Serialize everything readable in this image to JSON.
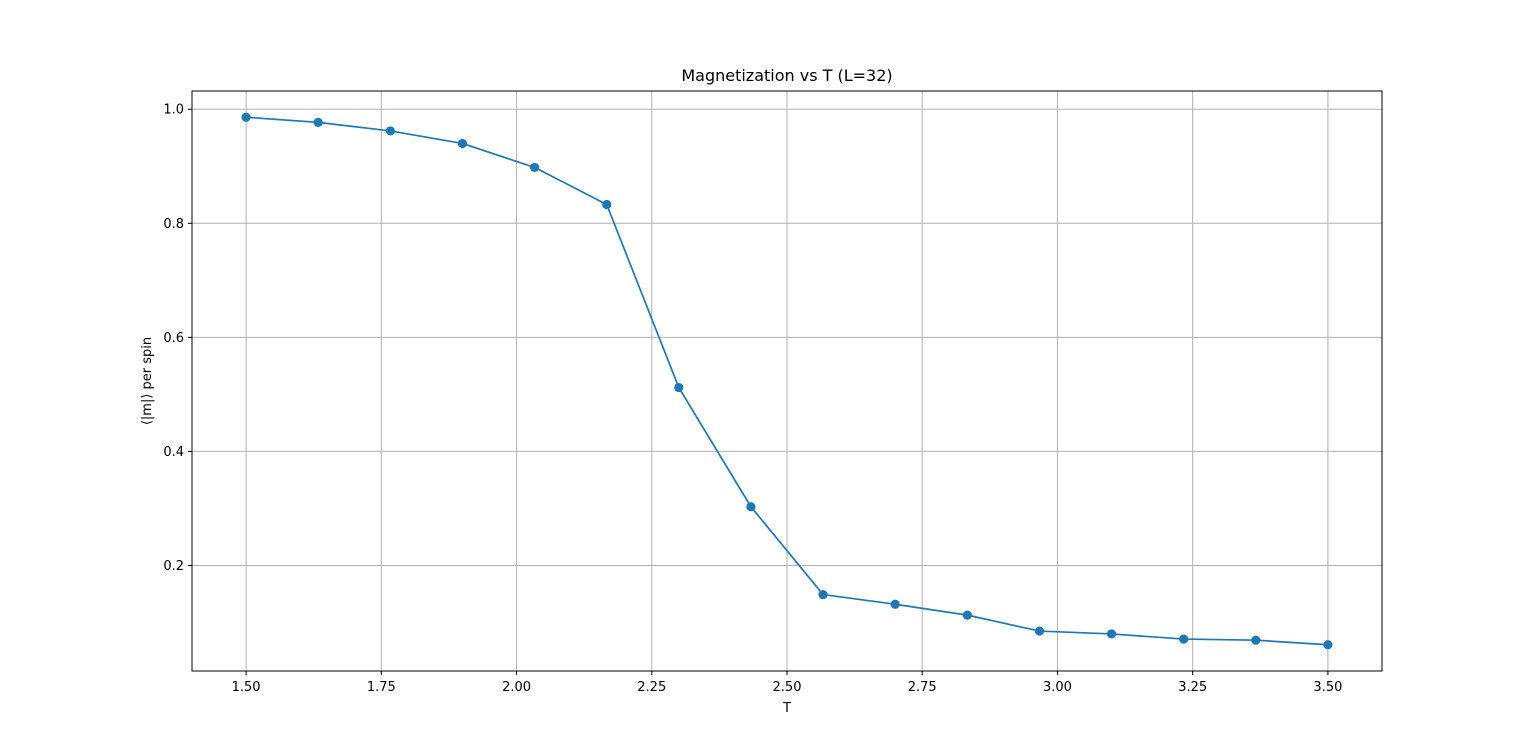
{
  "chart_data": {
    "type": "line",
    "title": "Magnetization vs T (L=32)",
    "xlabel": "T",
    "ylabel": "⟨|m|⟩ per spin",
    "x": [
      1.5,
      1.6333,
      1.7667,
      1.9,
      2.0333,
      2.1667,
      2.3,
      2.4333,
      2.5667,
      2.7,
      2.8333,
      2.9667,
      3.1,
      3.2333,
      3.3667,
      3.5
    ],
    "series": [
      {
        "values": [
          0.986,
          0.977,
          0.962,
          0.94,
          0.898,
          0.833,
          0.512,
          0.303,
          0.149,
          0.132,
          0.113,
          0.085,
          0.08,
          0.071,
          0.069,
          0.061
        ]
      }
    ],
    "xlim": [
      1.4,
      3.6
    ],
    "ylim": [
      0.015,
      1.032
    ],
    "xticks": [
      1.5,
      1.75,
      2.0,
      2.25,
      2.5,
      2.75,
      3.0,
      3.25,
      3.5
    ],
    "xtick_labels": [
      "1.50",
      "1.75",
      "2.00",
      "2.25",
      "2.50",
      "2.75",
      "3.00",
      "3.25",
      "3.50"
    ],
    "yticks": [
      0.2,
      0.4,
      0.6,
      0.8,
      1.0
    ],
    "ytick_labels": [
      "0.2",
      "0.4",
      "0.6",
      "0.8",
      "1.0"
    ],
    "grid": true,
    "marker": "circle",
    "color": "#1f77b4",
    "grid_color": "#b0b0b0"
  }
}
